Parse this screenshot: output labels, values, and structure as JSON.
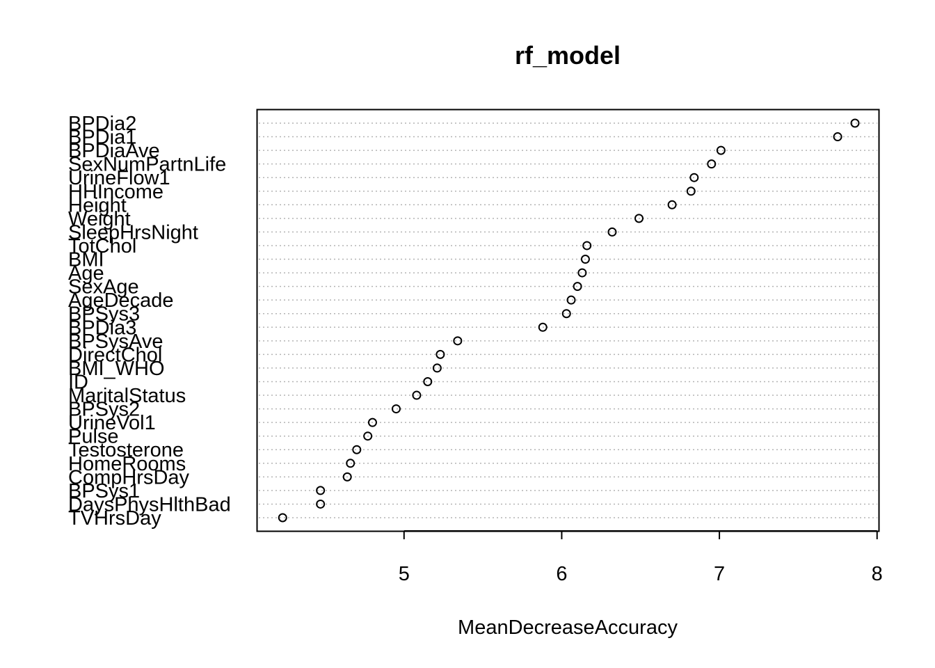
{
  "chart_data": {
    "type": "scatter",
    "title": "rf_model",
    "xlabel": "MeanDecreaseAccuracy",
    "ylabel": "",
    "xlim": [
      4.07,
      8.01
    ],
    "xticks": [
      5,
      6,
      7,
      8
    ],
    "grid": "dotted horizontal",
    "categories": [
      "BPDia2",
      "BPDia1",
      "BPDiaAve",
      "SexNumPartnLife",
      "UrineFlow1",
      "HHIncome",
      "Height",
      "Weight",
      "SleepHrsNight",
      "TotChol",
      "BMI",
      "Age",
      "SexAge",
      "AgeDecade",
      "BPSys3",
      "BPDia3",
      "BPSysAve",
      "DirectChol",
      "BMI_WHO",
      "ID",
      "MaritalStatus",
      "BPSys2",
      "UrineVol1",
      "Pulse",
      "Testosterone",
      "HomeRooms",
      "CompHrsDay",
      "BPSys1",
      "DaysPhysHlthBad",
      "TVHrsDay"
    ],
    "values": [
      7.86,
      7.75,
      7.01,
      6.95,
      6.84,
      6.82,
      6.7,
      6.49,
      6.32,
      6.16,
      6.15,
      6.13,
      6.1,
      6.06,
      6.03,
      5.88,
      5.34,
      5.23,
      5.21,
      5.15,
      5.08,
      4.95,
      4.8,
      4.77,
      4.7,
      4.66,
      4.64,
      4.47,
      4.47,
      4.23
    ]
  }
}
